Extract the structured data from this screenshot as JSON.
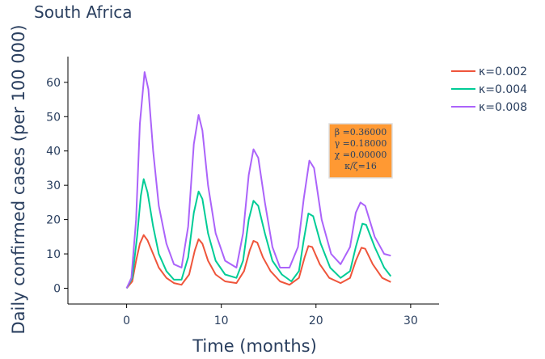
{
  "chart_data": {
    "type": "scatter",
    "title": "South Africa",
    "xlabel": "Time (months)",
    "ylabel": "Daily confirmed cases (per 100 000)",
    "xlim": [
      -6.2,
      33
    ],
    "ylim": [
      -4.6,
      67.5
    ],
    "x_ticks": [
      0,
      10,
      20,
      30
    ],
    "y_ticks": [
      0,
      10,
      20,
      30,
      40,
      50,
      60
    ],
    "grid": false,
    "legend_position": "top-right",
    "series": [
      {
        "name": "κ=0.002",
        "color": "#EF553B",
        "style": "line",
        "points": [
          [
            0,
            0
          ],
          [
            0.6,
            2
          ],
          [
            1.0,
            8
          ],
          [
            1.4,
            13
          ],
          [
            1.8,
            15.5
          ],
          [
            2.2,
            14
          ],
          [
            2.8,
            10
          ],
          [
            3.4,
            6
          ],
          [
            4.2,
            3
          ],
          [
            5.0,
            1.5
          ],
          [
            5.8,
            1
          ],
          [
            6.6,
            4
          ],
          [
            7.2,
            11
          ],
          [
            7.6,
            14.3
          ],
          [
            8.0,
            13
          ],
          [
            8.6,
            8
          ],
          [
            9.4,
            4
          ],
          [
            10.4,
            2
          ],
          [
            11.6,
            1.5
          ],
          [
            12.4,
            5
          ],
          [
            13.0,
            11
          ],
          [
            13.4,
            13.8
          ],
          [
            13.8,
            13.3
          ],
          [
            14.4,
            9
          ],
          [
            15.2,
            5
          ],
          [
            16.2,
            2
          ],
          [
            17.2,
            1
          ],
          [
            18.2,
            3
          ],
          [
            18.8,
            9
          ],
          [
            19.2,
            12.3
          ],
          [
            19.6,
            12
          ],
          [
            20.4,
            7
          ],
          [
            21.4,
            3
          ],
          [
            22.6,
            1.5
          ],
          [
            23.6,
            3
          ],
          [
            24.2,
            8
          ],
          [
            24.8,
            11.8
          ],
          [
            25.2,
            11.5
          ],
          [
            26.0,
            7
          ],
          [
            27.0,
            3
          ],
          [
            27.9,
            1.8
          ]
        ]
      },
      {
        "name": "κ=0.004",
        "color": "#00CC96",
        "style": "line",
        "points": [
          [
            0,
            0
          ],
          [
            0.6,
            3
          ],
          [
            1.1,
            15
          ],
          [
            1.5,
            27
          ],
          [
            1.8,
            31.8
          ],
          [
            2.2,
            28
          ],
          [
            2.8,
            18
          ],
          [
            3.4,
            10
          ],
          [
            4.2,
            5
          ],
          [
            5.0,
            2.5
          ],
          [
            5.8,
            2.5
          ],
          [
            6.5,
            9
          ],
          [
            7.1,
            22
          ],
          [
            7.6,
            28.2
          ],
          [
            8.0,
            26
          ],
          [
            8.6,
            16
          ],
          [
            9.4,
            8
          ],
          [
            10.4,
            4
          ],
          [
            11.6,
            3
          ],
          [
            12.3,
            8
          ],
          [
            12.9,
            20
          ],
          [
            13.4,
            25.5
          ],
          [
            13.9,
            24
          ],
          [
            14.6,
            16
          ],
          [
            15.4,
            8
          ],
          [
            16.4,
            4
          ],
          [
            17.4,
            2
          ],
          [
            18.2,
            5
          ],
          [
            18.7,
            14
          ],
          [
            19.2,
            21.8
          ],
          [
            19.7,
            21
          ],
          [
            20.5,
            13
          ],
          [
            21.5,
            6
          ],
          [
            22.6,
            3
          ],
          [
            23.6,
            5
          ],
          [
            24.2,
            12
          ],
          [
            24.9,
            18.8
          ],
          [
            25.3,
            18.5
          ],
          [
            26.2,
            12
          ],
          [
            27.2,
            6
          ],
          [
            27.9,
            3.5
          ]
        ]
      },
      {
        "name": "κ=0.008",
        "color": "#AB63FA",
        "style": "line",
        "points": [
          [
            0,
            0
          ],
          [
            0.5,
            3
          ],
          [
            1.0,
            20
          ],
          [
            1.4,
            48
          ],
          [
            1.9,
            63
          ],
          [
            2.3,
            58
          ],
          [
            2.8,
            40
          ],
          [
            3.4,
            24
          ],
          [
            4.2,
            13
          ],
          [
            5.0,
            7
          ],
          [
            5.8,
            6
          ],
          [
            6.5,
            18
          ],
          [
            7.1,
            42
          ],
          [
            7.6,
            50.5
          ],
          [
            8.0,
            46
          ],
          [
            8.6,
            30
          ],
          [
            9.4,
            16
          ],
          [
            10.4,
            8
          ],
          [
            11.6,
            6
          ],
          [
            12.3,
            16
          ],
          [
            12.9,
            33
          ],
          [
            13.4,
            40.5
          ],
          [
            13.9,
            38
          ],
          [
            14.6,
            25
          ],
          [
            15.4,
            12
          ],
          [
            16.2,
            6
          ],
          [
            17.2,
            6
          ],
          [
            18.1,
            12
          ],
          [
            18.7,
            26
          ],
          [
            19.3,
            37.2
          ],
          [
            19.8,
            35
          ],
          [
            20.6,
            20
          ],
          [
            21.6,
            10
          ],
          [
            22.6,
            7
          ],
          [
            23.6,
            12
          ],
          [
            24.2,
            22
          ],
          [
            24.7,
            25
          ],
          [
            25.2,
            24
          ],
          [
            26.2,
            15
          ],
          [
            27.2,
            10
          ],
          [
            27.9,
            9.5
          ]
        ]
      },
      {
        "name": "",
        "color": "#636EFA",
        "style": "markers",
        "points": []
      }
    ],
    "annotation": {
      "lines": [
        "β =0.36000",
        "γ =0.18000",
        "χ =0.00000",
        "κ/ζ=16"
      ],
      "background": "#FF9933",
      "text_color": "#2a3f5f"
    }
  }
}
